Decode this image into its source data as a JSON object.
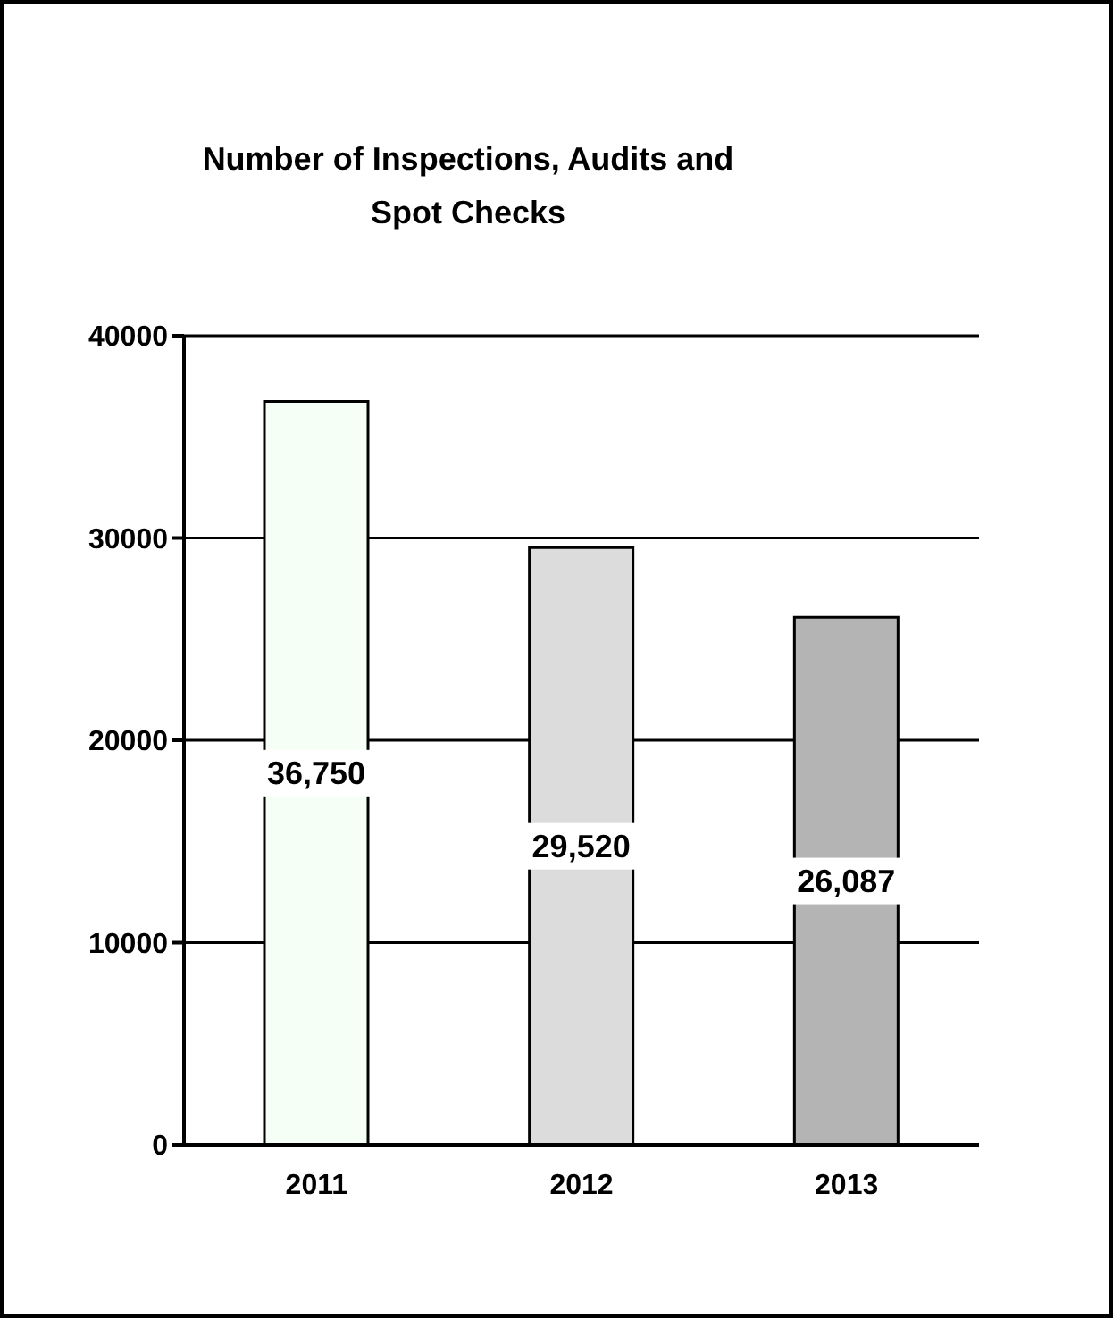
{
  "chart_data": {
    "type": "bar",
    "title": "Number of Inspections, Audits and Spot Checks",
    "categories": [
      "2011",
      "2012",
      "2013"
    ],
    "values": [
      36750,
      29520,
      26087
    ],
    "colors": [
      "#f5fff5",
      "#dcdcdc",
      "#b4b4b4"
    ],
    "value_labels": [
      "36,750",
      "29,520",
      "26,087"
    ],
    "ylim": [
      0,
      40000
    ],
    "yticks": [
      0,
      10000,
      20000,
      30000,
      40000
    ],
    "grid": "y"
  }
}
